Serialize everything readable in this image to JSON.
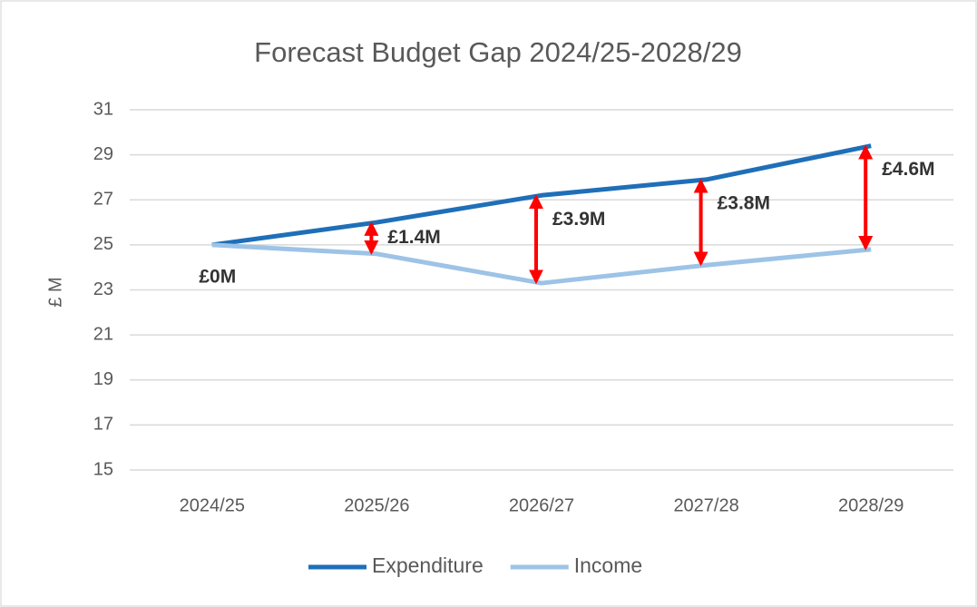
{
  "chart_data": {
    "type": "line",
    "title": "Forecast Budget Gap 2024/25-2028/29",
    "y_label": "£ M",
    "categories": [
      "2024/25",
      "2025/26",
      "2026/27",
      "2027/28",
      "2028/29"
    ],
    "series": [
      {
        "name": "Expenditure",
        "color": "#1f6fb8",
        "values": [
          25,
          26.0,
          27.2,
          27.9,
          29.4
        ]
      },
      {
        "name": "Income",
        "color": "#9dc3e6",
        "values": [
          25,
          24.6,
          23.3,
          24.1,
          24.8
        ]
      }
    ],
    "annotations": [
      "£0M",
      "£1.4M",
      "£3.9M",
      "£3.8M",
      "£4.6M"
    ],
    "annotation_color": "#ff0000",
    "ylim": [
      15,
      31
    ],
    "yticks": [
      15,
      17,
      19,
      21,
      23,
      25,
      27,
      29,
      31
    ],
    "grid": true,
    "legend": "bottom"
  }
}
